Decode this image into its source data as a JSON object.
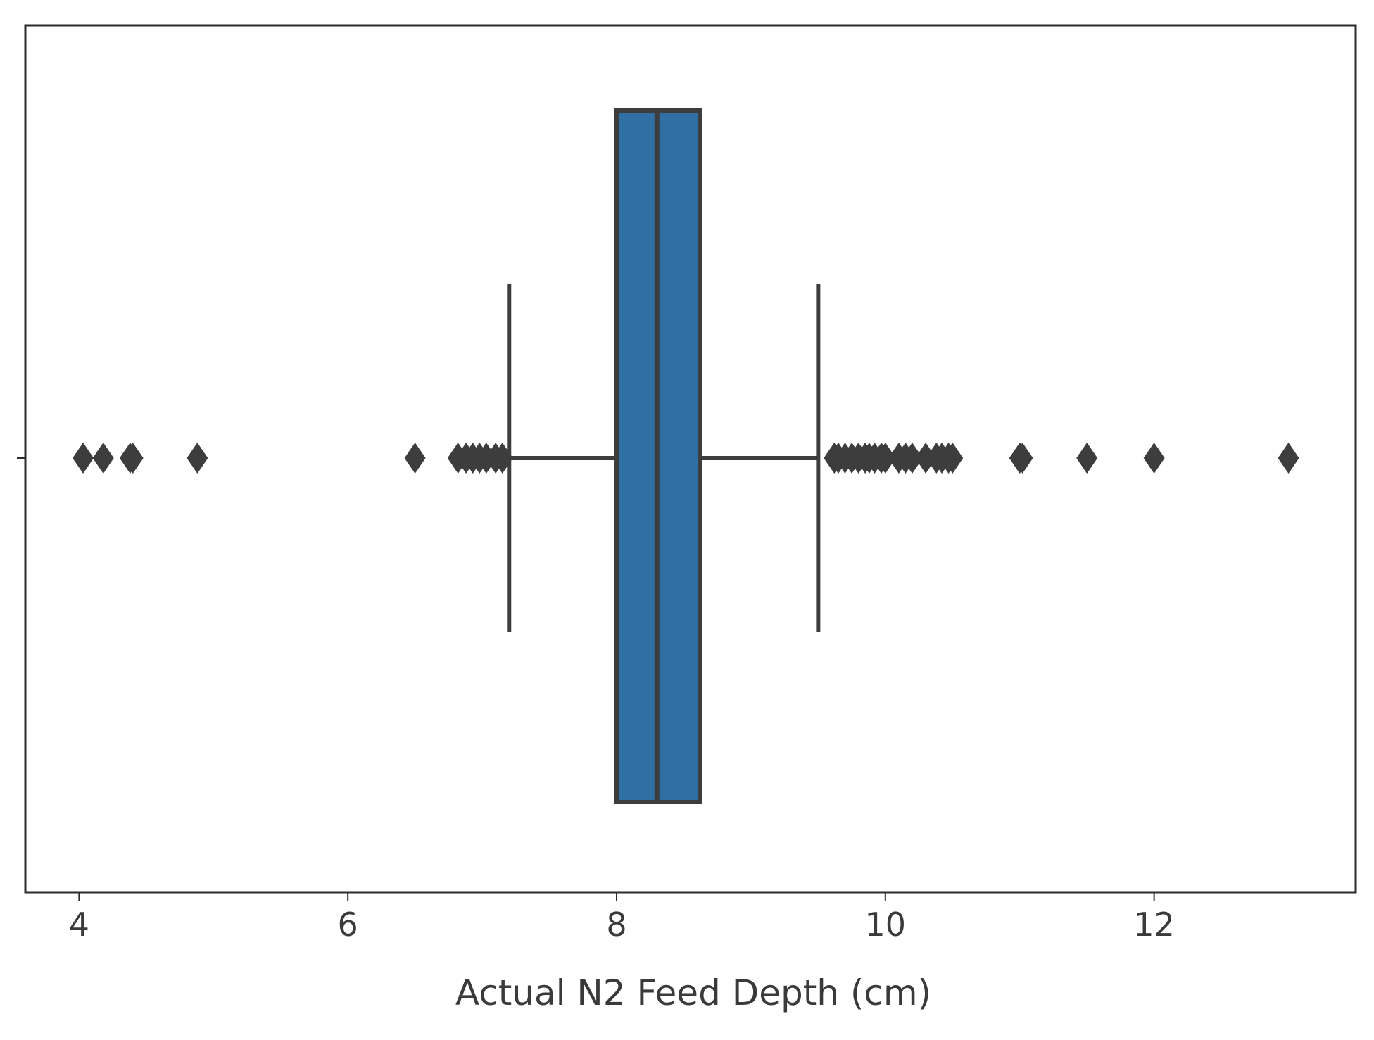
{
  "chart_data": {
    "type": "box",
    "title": "",
    "xlabel": "Actual N2 Feed Depth (cm)",
    "ylabel": "",
    "xlim": [
      3.6,
      13.5
    ],
    "xticks": [
      4,
      6,
      8,
      10,
      12
    ],
    "xtick_labels": [
      "4",
      "6",
      "8",
      "10",
      "12"
    ],
    "orientation": "horizontal",
    "box": {
      "q1": 8.0,
      "median": 8.3,
      "q3": 8.62,
      "whisker_low": 7.2,
      "whisker_high": 9.5
    },
    "outliers": [
      4.03,
      4.18,
      4.38,
      4.4,
      4.88,
      6.5,
      6.82,
      6.88,
      6.93,
      6.98,
      7.03,
      7.1,
      7.15,
      9.62,
      9.65,
      9.7,
      9.75,
      9.8,
      9.85,
      9.88,
      9.92,
      9.97,
      10.0,
      10.1,
      10.15,
      10.2,
      10.3,
      10.38,
      10.42,
      10.47,
      10.5,
      11.0,
      11.02,
      11.5,
      12.0,
      13.0
    ],
    "colors": {
      "box_fill": "#2f6fa3",
      "line": "#3d3d3d",
      "frame": "#2b2b2b",
      "outlier": "#3d3d3d"
    }
  }
}
